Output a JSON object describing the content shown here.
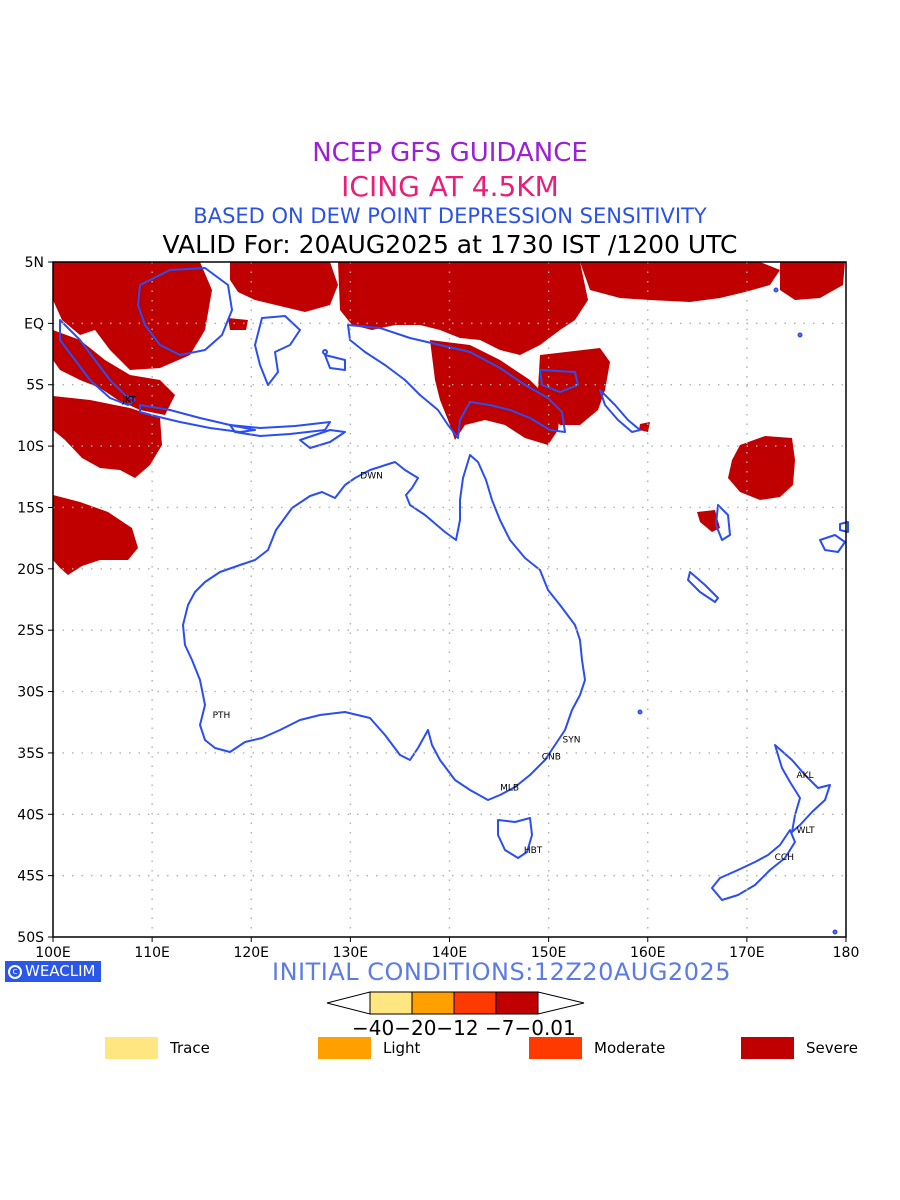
{
  "titles": {
    "line1": "NCEP GFS GUIDANCE",
    "line2": "ICING AT 4.5KM",
    "line3": "BASED ON DEW POINT DEPRESSION SENSITIVITY",
    "line4": "VALID For: 20AUG2025 at 1730 IST /1200 UTC"
  },
  "colors": {
    "line1": "#9b1fd6",
    "line2": "#ea1e78",
    "line3": "#2b52e6",
    "line4": "#000000",
    "coast": "#2a4ef0",
    "severe": "#c00000",
    "moderate": "#ff3a00",
    "light": "#ff9f00",
    "trace": "#ffe680"
  },
  "map": {
    "lon_range": [
      100,
      180
    ],
    "lat_range": [
      -50,
      5
    ],
    "lon_ticks": [
      "100E",
      "110E",
      "120E",
      "130E",
      "140E",
      "150E",
      "160E",
      "170E",
      "180"
    ],
    "lat_ticks": [
      "5N",
      "EQ",
      "5S",
      "10S",
      "15S",
      "20S",
      "25S",
      "30S",
      "35S",
      "40S",
      "45S",
      "50S"
    ],
    "cities": [
      {
        "name": "JKT",
        "lon": 106.8,
        "lat": -6.2
      },
      {
        "name": "DWN",
        "lon": 130.8,
        "lat": -12.4
      },
      {
        "name": "PTH",
        "lon": 115.9,
        "lat": -31.9
      },
      {
        "name": "SYN",
        "lon": 151.2,
        "lat": -33.9
      },
      {
        "name": "CNB",
        "lon": 149.1,
        "lat": -35.3
      },
      {
        "name": "MLB",
        "lon": 144.9,
        "lat": -37.8
      },
      {
        "name": "HBT",
        "lon": 147.3,
        "lat": -42.9
      },
      {
        "name": "AKL",
        "lon": 174.8,
        "lat": -36.8
      },
      {
        "name": "WLT",
        "lon": 174.8,
        "lat": -41.3
      },
      {
        "name": "CCH",
        "lon": 172.6,
        "lat": -43.5
      }
    ]
  },
  "logo": "WEACLIM",
  "initial": "INITIAL CONDITIONS:12Z20AUG2025",
  "colorbar_labels": "−40−20−12 −7−0.01",
  "legend": [
    {
      "label": "Trace",
      "color": "#ffe680"
    },
    {
      "label": "Light",
      "color": "#ff9f00"
    },
    {
      "label": "Moderate",
      "color": "#ff3a00"
    },
    {
      "label": "Severe",
      "color": "#c00000"
    }
  ]
}
